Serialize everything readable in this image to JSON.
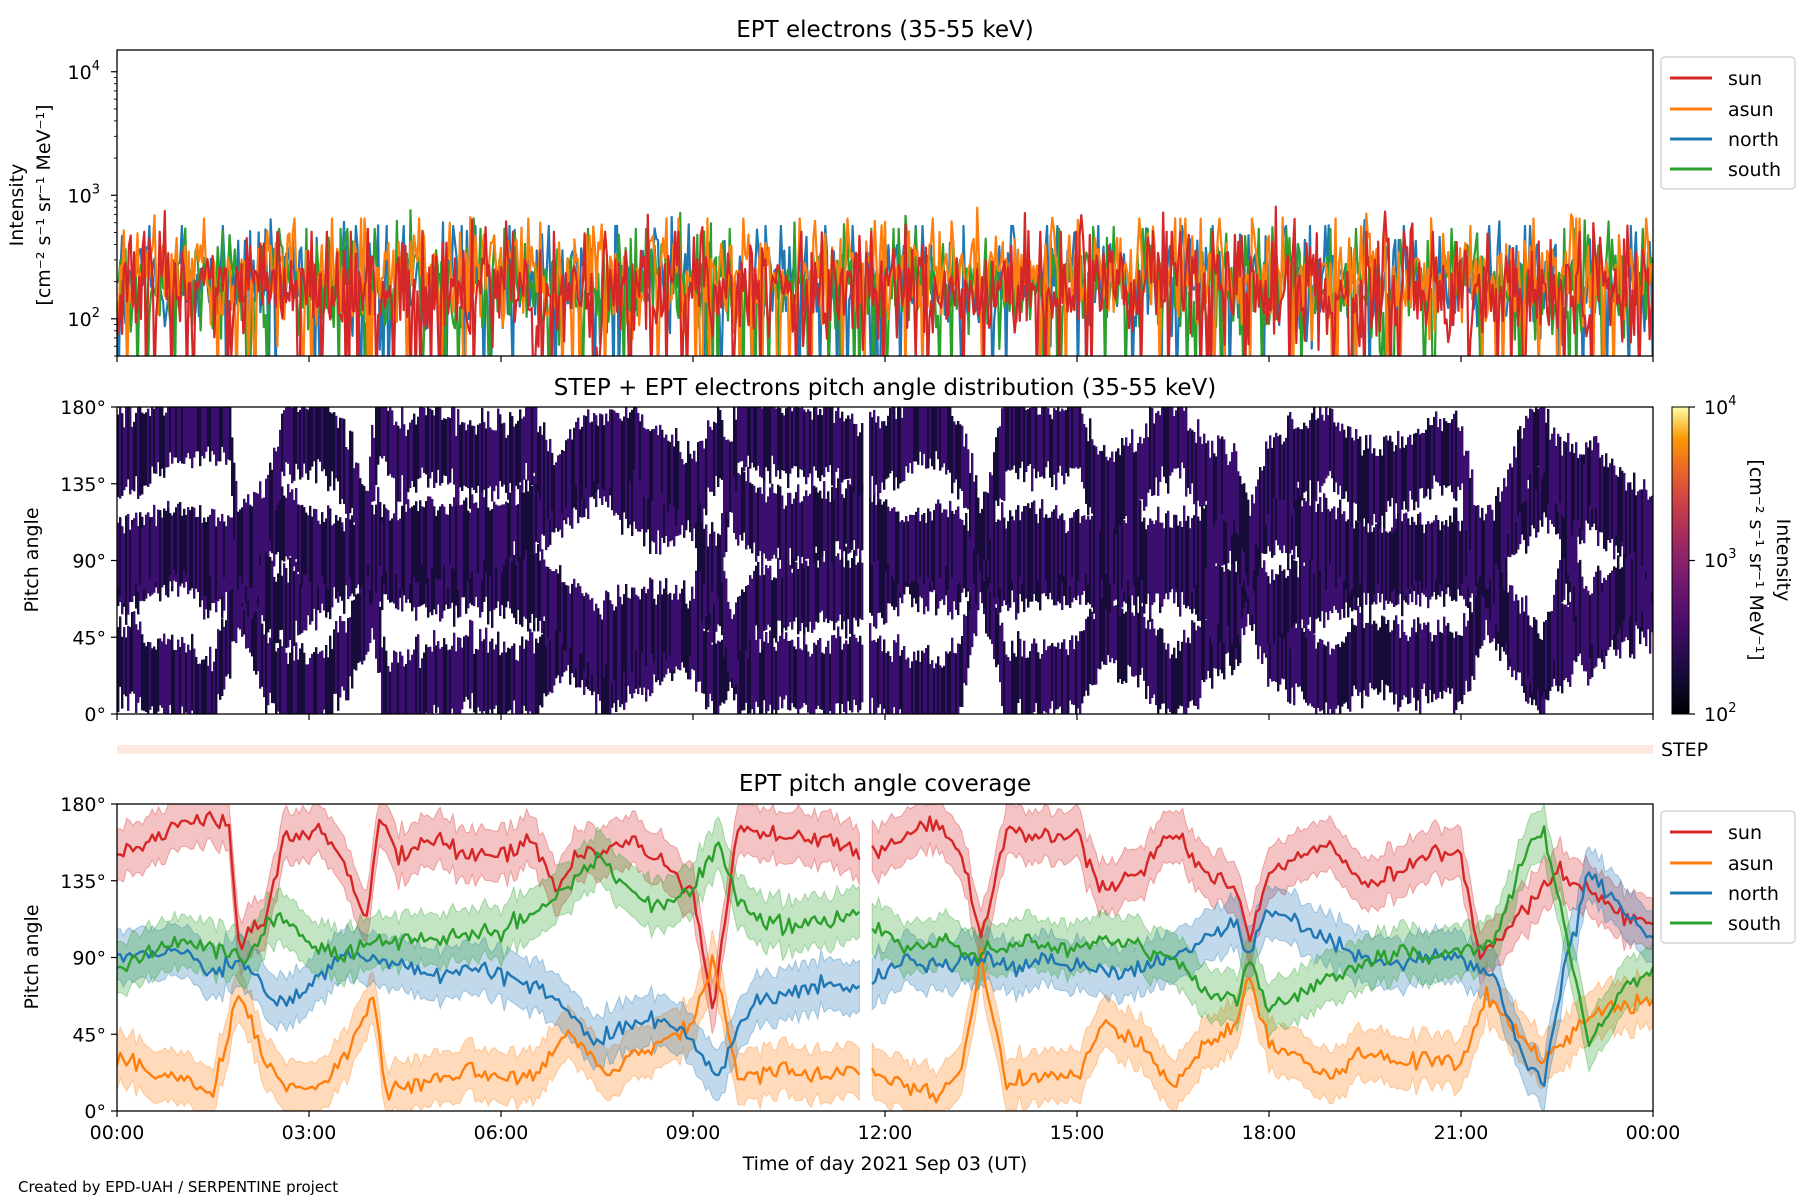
{
  "colors": {
    "sun": "#d62728",
    "asun": "#ff7f0e",
    "north": "#1f77b4",
    "south": "#2ca02c",
    "heat_fill": "#3b0f70",
    "heat_dark": "#160b39",
    "step_bar": "#fde8e0"
  },
  "chart_data": [
    {
      "type": "line",
      "title": "EPT electrons (35-55 keV)",
      "ylabel_line1": "Intensity",
      "ylabel_line2": "[cm⁻² s⁻¹ sr⁻¹ MeV⁻¹]",
      "yscale": "log",
      "ylim": [
        50,
        15000
      ],
      "yticks": [
        {
          "base": "10",
          "exp": "2",
          "value": 100
        },
        {
          "base": "10",
          "exp": "3",
          "value": 1000
        },
        {
          "base": "10",
          "exp": "4",
          "value": 10000
        }
      ],
      "xlim_hours": [
        0,
        24
      ],
      "series": [
        {
          "name": "sun",
          "color_key": "sun",
          "typical": 180,
          "noise_decades": 0.45
        },
        {
          "name": "asun",
          "color_key": "asun",
          "typical": 230,
          "noise_decades": 0.4
        },
        {
          "name": "north",
          "color_key": "north",
          "typical": 200,
          "noise_decades": 0.42
        },
        {
          "name": "south",
          "color_key": "south",
          "typical": 190,
          "noise_decades": 0.42
        }
      ],
      "legend_position": "outside-right"
    },
    {
      "type": "heatmap",
      "title": "STEP + EPT electrons pitch angle distribution (35-55 keV)",
      "ylabel": "Pitch angle",
      "ylim": [
        0,
        180
      ],
      "yticks": [
        "0°",
        "45°",
        "90°",
        "135°",
        "180°"
      ],
      "colorbar": {
        "label_line1": "Intensity",
        "label_line2": "[cm⁻² s⁻¹ sr⁻¹ MeV⁻¹]",
        "scale": "log",
        "range": [
          100,
          10000
        ],
        "ticks": [
          {
            "base": "10",
            "exp": "2"
          },
          {
            "base": "10",
            "exp": "3"
          },
          {
            "base": "10",
            "exp": "4"
          }
        ],
        "colormap": "inferno"
      },
      "typical_intensity": 250
    },
    {
      "type": "bar",
      "label": "STEP"
    },
    {
      "type": "line",
      "title": "EPT pitch angle coverage",
      "ylabel": "Pitch angle",
      "ylim": [
        0,
        180
      ],
      "yticks": [
        "0°",
        "45°",
        "90°",
        "135°",
        "180°"
      ],
      "xlabel": "Time of day 2021 Sep 03 (UT)",
      "xticks": [
        "00:00",
        "03:00",
        "06:00",
        "09:00",
        "12:00",
        "15:00",
        "18:00",
        "21:00",
        "00:00"
      ],
      "xlim_hours": [
        0,
        24
      ],
      "band_halfwidth_deg": 15,
      "series": [
        {
          "name": "sun",
          "color_key": "sun",
          "anchors": [
            [
              0,
              150
            ],
            [
              1,
              168
            ],
            [
              1.5,
              172
            ],
            [
              1.75,
              165
            ],
            [
              1.9,
              100
            ],
            [
              2.3,
              110
            ],
            [
              2.6,
              160
            ],
            [
              3.2,
              165
            ],
            [
              3.6,
              140
            ],
            [
              3.9,
              110
            ],
            [
              4.1,
              172
            ],
            [
              4.4,
              150
            ],
            [
              5,
              160
            ],
            [
              5.5,
              150
            ],
            [
              6,
              150
            ],
            [
              6.5,
              160
            ],
            [
              6.9,
              130
            ],
            [
              7.2,
              150
            ],
            [
              7.5,
              150
            ],
            [
              8,
              160
            ],
            [
              8.5,
              145
            ],
            [
              9,
              130
            ],
            [
              9.3,
              60
            ],
            [
              9.7,
              165
            ],
            [
              10.5,
              160
            ],
            [
              11,
              160
            ],
            [
              11.6,
              150
            ],
            [
              12.3,
              160
            ],
            [
              12.8,
              170
            ],
            [
              13.2,
              150
            ],
            [
              13.5,
              100
            ],
            [
              13.9,
              165
            ],
            [
              14.5,
              160
            ],
            [
              15,
              160
            ],
            [
              15.4,
              130
            ],
            [
              16,
              140
            ],
            [
              16.5,
              165
            ],
            [
              17,
              140
            ],
            [
              17.5,
              130
            ],
            [
              17.7,
              100
            ],
            [
              18,
              140
            ],
            [
              18.5,
              150
            ],
            [
              19,
              155
            ],
            [
              19.5,
              130
            ],
            [
              20,
              140
            ],
            [
              20.5,
              150
            ],
            [
              21,
              150
            ],
            [
              21.3,
              90
            ],
            [
              21.6,
              100
            ],
            [
              22,
              120
            ],
            [
              22.5,
              140
            ],
            [
              23,
              130
            ],
            [
              23.5,
              115
            ],
            [
              24,
              110
            ]
          ]
        },
        {
          "name": "asun",
          "color_key": "asun",
          "anchors": [
            [
              0,
              30
            ],
            [
              1,
              20
            ],
            [
              1.5,
              10
            ],
            [
              1.9,
              70
            ],
            [
              2.3,
              30
            ],
            [
              2.6,
              15
            ],
            [
              3.2,
              15
            ],
            [
              3.7,
              40
            ],
            [
              4,
              70
            ],
            [
              4.2,
              10
            ],
            [
              5,
              20
            ],
            [
              5.5,
              25
            ],
            [
              6,
              20
            ],
            [
              6.5,
              20
            ],
            [
              7,
              45
            ],
            [
              7.4,
              35
            ],
            [
              7.6,
              20
            ],
            [
              8,
              30
            ],
            [
              8.5,
              40
            ],
            [
              9,
              50
            ],
            [
              9.3,
              90
            ],
            [
              9.7,
              20
            ],
            [
              10.5,
              25
            ],
            [
              11,
              20
            ],
            [
              11.6,
              25
            ],
            [
              12.3,
              15
            ],
            [
              12.8,
              10
            ],
            [
              13.2,
              25
            ],
            [
              13.5,
              90
            ],
            [
              13.9,
              15
            ],
            [
              14.5,
              20
            ],
            [
              15,
              20
            ],
            [
              15.4,
              50
            ],
            [
              16,
              40
            ],
            [
              16.5,
              15
            ],
            [
              17,
              40
            ],
            [
              17.5,
              50
            ],
            [
              17.7,
              80
            ],
            [
              18,
              40
            ],
            [
              18.5,
              30
            ],
            [
              19,
              20
            ],
            [
              19.5,
              35
            ],
            [
              20,
              30
            ],
            [
              20.5,
              30
            ],
            [
              21,
              25
            ],
            [
              21.4,
              70
            ],
            [
              21.8,
              50
            ],
            [
              22.3,
              30
            ],
            [
              22.8,
              50
            ],
            [
              23.3,
              60
            ],
            [
              24,
              65
            ]
          ]
        },
        {
          "name": "north",
          "color_key": "north",
          "anchors": [
            [
              0,
              90
            ],
            [
              1,
              95
            ],
            [
              1.5,
              80
            ],
            [
              2,
              90
            ],
            [
              2.5,
              60
            ],
            [
              3,
              75
            ],
            [
              3.5,
              90
            ],
            [
              4,
              90
            ],
            [
              4.5,
              85
            ],
            [
              5,
              80
            ],
            [
              5.5,
              85
            ],
            [
              6,
              80
            ],
            [
              6.5,
              75
            ],
            [
              7,
              60
            ],
            [
              7.5,
              40
            ],
            [
              8,
              50
            ],
            [
              8.5,
              55
            ],
            [
              9,
              40
            ],
            [
              9.4,
              20
            ],
            [
              9.7,
              50
            ],
            [
              10,
              65
            ],
            [
              10.5,
              70
            ],
            [
              11,
              75
            ],
            [
              11.6,
              70
            ],
            [
              12.3,
              90
            ],
            [
              13,
              85
            ],
            [
              13.5,
              90
            ],
            [
              14,
              85
            ],
            [
              14.5,
              90
            ],
            [
              15,
              85
            ],
            [
              15.5,
              80
            ],
            [
              16,
              85
            ],
            [
              16.5,
              90
            ],
            [
              17,
              100
            ],
            [
              17.5,
              110
            ],
            [
              17.7,
              90
            ],
            [
              18,
              120
            ],
            [
              18.5,
              110
            ],
            [
              19,
              100
            ],
            [
              19.5,
              90
            ],
            [
              20,
              85
            ],
            [
              20.5,
              90
            ],
            [
              21,
              90
            ],
            [
              21.5,
              80
            ],
            [
              22,
              30
            ],
            [
              22.3,
              15
            ],
            [
              22.6,
              80
            ],
            [
              23,
              140
            ],
            [
              23.5,
              120
            ],
            [
              24,
              100
            ]
          ]
        },
        {
          "name": "south",
          "color_key": "south",
          "anchors": [
            [
              0,
              85
            ],
            [
              1,
              100
            ],
            [
              1.5,
              95
            ],
            [
              2,
              90
            ],
            [
              2.5,
              115
            ],
            [
              3,
              100
            ],
            [
              3.5,
              90
            ],
            [
              4,
              100
            ],
            [
              4.5,
              100
            ],
            [
              5,
              100
            ],
            [
              5.5,
              105
            ],
            [
              6,
              105
            ],
            [
              6.5,
              115
            ],
            [
              7,
              130
            ],
            [
              7.5,
              150
            ],
            [
              8,
              130
            ],
            [
              8.5,
              120
            ],
            [
              9,
              130
            ],
            [
              9.4,
              160
            ],
            [
              9.7,
              125
            ],
            [
              10,
              110
            ],
            [
              10.5,
              110
            ],
            [
              11,
              110
            ],
            [
              11.6,
              115
            ],
            [
              12.3,
              95
            ],
            [
              13,
              100
            ],
            [
              13.5,
              90
            ],
            [
              14,
              100
            ],
            [
              14.5,
              95
            ],
            [
              15,
              95
            ],
            [
              15.5,
              100
            ],
            [
              16,
              95
            ],
            [
              16.5,
              90
            ],
            [
              17,
              70
            ],
            [
              17.5,
              65
            ],
            [
              17.7,
              90
            ],
            [
              18,
              60
            ],
            [
              18.5,
              70
            ],
            [
              19,
              80
            ],
            [
              19.5,
              85
            ],
            [
              20,
              95
            ],
            [
              20.5,
              90
            ],
            [
              21,
              95
            ],
            [
              21.5,
              100
            ],
            [
              22,
              150
            ],
            [
              22.3,
              165
            ],
            [
              22.6,
              110
            ],
            [
              23,
              40
            ],
            [
              23.5,
              70
            ],
            [
              24,
              80
            ]
          ]
        }
      ],
      "legend_position": "outside-right"
    }
  ],
  "legend_labels": [
    "sun",
    "asun",
    "north",
    "south"
  ],
  "footer": "Created by EPD-UAH / SERPENTINE project"
}
